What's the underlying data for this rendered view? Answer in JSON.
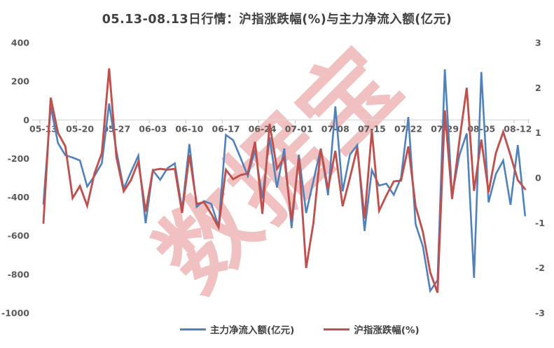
{
  "chart": {
    "title": "05.13-08.13日行情：沪指涨跌幅(%)与主力净流入额(亿元)"
  },
  "watermark": "数据宝",
  "colors": {
    "series_blue": "#4F81BD",
    "series_red": "#C0504D",
    "axis_line": "#D9D9D9",
    "tick_mark": "#BFBFBF",
    "axis_label": "#595959",
    "title_text": "#404040",
    "watermark_red": "#DD5C5C"
  },
  "legend": {
    "items": [
      {
        "label": "主力净流入额(亿元)",
        "color": "#4F81BD"
      },
      {
        "label": "沪指涨跌幅(%)",
        "color": "#C0504D"
      }
    ]
  },
  "axes": {
    "left_tick_labels": [
      "400",
      "200",
      "0",
      "-200",
      "-400",
      "-600",
      "-800",
      "-1000"
    ],
    "right_tick_labels": [
      "3",
      "2",
      "1",
      "0",
      "-1",
      "-2",
      "-3"
    ],
    "x_tick_labels": [
      "05-13",
      "05-20",
      "05-27",
      "06-03",
      "06-10",
      "06-17",
      "06-24",
      "07-01",
      "07-08",
      "07-15",
      "07-22",
      "07-29",
      "08-05",
      "08-12"
    ]
  },
  "chart_data": {
    "type": "line",
    "title": "05.13-08.13日行情：沪指涨跌幅(%)与主力净流入额(亿元)",
    "xlabel": "",
    "grid": false,
    "legend_position": "bottom",
    "left_axis": {
      "label": "主力净流入额(亿元)",
      "range": [
        -1000,
        400
      ],
      "ticks": [
        400,
        200,
        0,
        -200,
        -400,
        -600,
        -800,
        -1000
      ]
    },
    "right_axis": {
      "label": "沪指涨跌幅(%)",
      "range": [
        -3,
        3
      ],
      "ticks": [
        3,
        2,
        1,
        0,
        -1,
        -2,
        -3
      ]
    },
    "x": [
      "05-13",
      "05-14",
      "05-15",
      "05-16",
      "05-17",
      "05-20",
      "05-21",
      "05-22",
      "05-23",
      "05-24",
      "05-27",
      "05-28",
      "05-29",
      "05-30",
      "05-31",
      "06-03",
      "06-04",
      "06-05",
      "06-06",
      "06-07",
      "06-10",
      "06-11",
      "06-12",
      "06-13",
      "06-14",
      "06-17",
      "06-18",
      "06-19",
      "06-20",
      "06-21",
      "06-24",
      "06-25",
      "06-26",
      "06-27",
      "06-28",
      "07-01",
      "07-02",
      "07-03",
      "07-04",
      "07-05",
      "07-08",
      "07-09",
      "07-10",
      "07-11",
      "07-12",
      "07-15",
      "07-16",
      "07-17",
      "07-18",
      "07-19",
      "07-22",
      "07-23",
      "07-24",
      "07-25",
      "07-26",
      "07-29",
      "07-30",
      "07-31",
      "08-01",
      "08-02",
      "08-05",
      "08-06",
      "08-07",
      "08-08",
      "08-09",
      "08-12",
      "08-13"
    ],
    "series": [
      {
        "name": "主力净流入额(亿元)",
        "axis": "left",
        "color": "#4F81BD",
        "values": [
          -435,
          70,
          -120,
          -183,
          -195,
          -210,
          -345,
          -290,
          -225,
          85,
          -160,
          -356,
          -270,
          -185,
          -535,
          -262,
          -310,
          -250,
          -225,
          -465,
          -125,
          -450,
          -420,
          -435,
          -552,
          -78,
          -105,
          -195,
          -290,
          -155,
          -405,
          -90,
          -350,
          -148,
          -560,
          -180,
          -482,
          -315,
          -148,
          -390,
          70,
          -370,
          -180,
          -130,
          -575,
          -260,
          -340,
          -330,
          -388,
          -300,
          15,
          -540,
          -655,
          -885,
          -830,
          262,
          -392,
          -183,
          -70,
          -818,
          248,
          -427,
          -280,
          -210,
          -440,
          -130,
          -495
        ]
      },
      {
        "name": "沪指涨跌幅(%)",
        "axis": "right",
        "color": "#C0504D",
        "values": [
          -1.0,
          1.78,
          1.0,
          0.7,
          -0.45,
          -0.18,
          -0.62,
          0.1,
          0.55,
          2.43,
          0.46,
          -0.3,
          -0.05,
          0.36,
          -0.75,
          0.17,
          0.2,
          0.18,
          0.2,
          -0.78,
          0.51,
          -0.58,
          -0.54,
          -0.8,
          -1.1,
          0.18,
          -0.03,
          0.06,
          0.1,
          0.8,
          -0.8,
          1.2,
          0.2,
          0.45,
          -0.95,
          0.45,
          -2.0,
          -1.0,
          0.64,
          -0.25,
          0.6,
          -0.63,
          0.0,
          0.67,
          -0.91,
          1.05,
          -0.73,
          -0.39,
          -0.08,
          -0.06,
          0.7,
          -0.63,
          -1.2,
          -2.1,
          -2.55,
          1.5,
          -0.47,
          0.82,
          2.0,
          -0.29,
          0.85,
          -0.32,
          0.55,
          1.02,
          0.5,
          -0.05,
          -0.25
        ]
      }
    ]
  }
}
